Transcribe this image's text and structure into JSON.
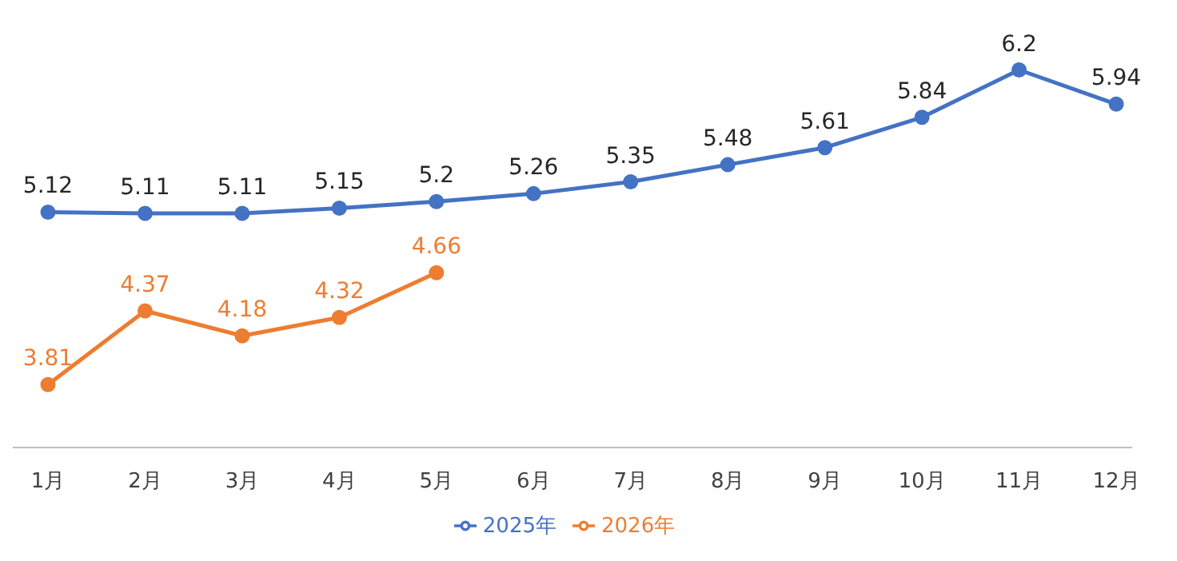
{
  "chart_data": {
    "type": "line",
    "categories": [
      "1月",
      "2月",
      "3月",
      "4月",
      "5月",
      "6月",
      "7月",
      "8月",
      "9月",
      "10月",
      "11月",
      "12月"
    ],
    "series": [
      {
        "name": "2025年",
        "color": "#4472c4",
        "values": [
          5.12,
          5.11,
          5.11,
          5.15,
          5.2,
          5.26,
          5.35,
          5.48,
          5.61,
          5.84,
          6.2,
          5.94
        ]
      },
      {
        "name": "2026年",
        "color": "#ed7d31",
        "values": [
          3.81,
          4.37,
          4.18,
          4.32,
          4.66,
          null,
          null,
          null,
          null,
          null,
          null,
          null
        ]
      }
    ],
    "data_labels": true,
    "marker": "circle",
    "line_style": "solid",
    "legend": "bottom",
    "grid": false
  }
}
